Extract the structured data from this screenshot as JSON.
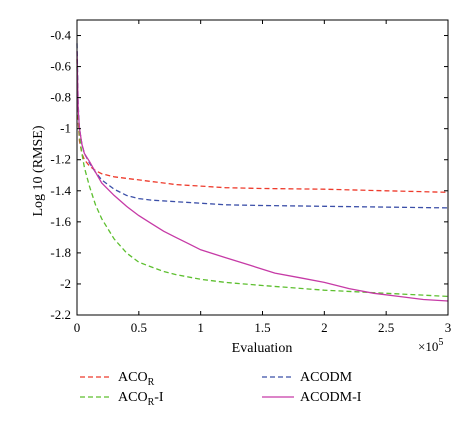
{
  "chart_data": {
    "type": "line",
    "xlabel": "Evaluation",
    "ylabel": "Log 10 (RMSE)",
    "x_multiplier_label": "×10",
    "x_multiplier_exp": "5",
    "xlim": [
      0,
      3
    ],
    "ylim": [
      -2.2,
      -0.3
    ],
    "xticks": [
      0,
      0.5,
      1,
      1.5,
      2,
      2.5,
      3
    ],
    "xtick_labels": [
      "0",
      "0.5",
      "1",
      "1.5",
      "2",
      "2.5",
      "3"
    ],
    "yticks": [
      -0.4,
      -0.6,
      -0.8,
      -1,
      -1.2,
      -1.4,
      -1.6,
      -1.8,
      -2,
      -2.2
    ],
    "ytick_labels": [
      "-0.4",
      "-0.6",
      "-0.8",
      "-1",
      "-1.2",
      "-1.4",
      "-1.6",
      "-1.8",
      "-2",
      "-2.2"
    ],
    "grid": false,
    "legend_placement": "bottom",
    "series": [
      {
        "name": "ACO",
        "name_sub": "R",
        "name_suffix": "",
        "color": "#ee3b2c",
        "dash": "dashed",
        "x": [
          0,
          0.01,
          0.02,
          0.04,
          0.06,
          0.1,
          0.15,
          0.2,
          0.3,
          0.4,
          0.5,
          0.6,
          0.7,
          0.8,
          1.0,
          1.2,
          1.5,
          2.0,
          2.5,
          3.0
        ],
        "y": [
          -0.55,
          -0.95,
          -1.08,
          -1.16,
          -1.2,
          -1.24,
          -1.27,
          -1.29,
          -1.31,
          -1.32,
          -1.33,
          -1.34,
          -1.35,
          -1.36,
          -1.37,
          -1.38,
          -1.385,
          -1.39,
          -1.4,
          -1.41
        ]
      },
      {
        "name": "ACODM",
        "name_sub": "",
        "name_suffix": "",
        "color": "#3b4fa8",
        "dash": "dashed",
        "x": [
          0,
          0.01,
          0.02,
          0.04,
          0.06,
          0.1,
          0.15,
          0.2,
          0.3,
          0.4,
          0.5,
          0.6,
          0.8,
          1.0,
          1.2,
          1.5,
          2.0,
          2.5,
          3.0
        ],
        "y": [
          -0.45,
          -0.85,
          -1.0,
          -1.1,
          -1.16,
          -1.22,
          -1.28,
          -1.33,
          -1.39,
          -1.43,
          -1.45,
          -1.46,
          -1.47,
          -1.48,
          -1.49,
          -1.495,
          -1.5,
          -1.505,
          -1.51
        ]
      },
      {
        "name": "ACO",
        "name_sub": "R",
        "name_suffix": "-I",
        "color": "#5dbf2f",
        "dash": "dashed",
        "x": [
          0,
          0.01,
          0.02,
          0.04,
          0.06,
          0.1,
          0.15,
          0.2,
          0.3,
          0.4,
          0.5,
          0.6,
          0.7,
          0.8,
          1.0,
          1.2,
          1.5,
          2.0,
          2.5,
          3.0
        ],
        "y": [
          -0.6,
          -0.9,
          -1.05,
          -1.16,
          -1.25,
          -1.37,
          -1.49,
          -1.58,
          -1.71,
          -1.8,
          -1.86,
          -1.89,
          -1.92,
          -1.94,
          -1.97,
          -1.99,
          -2.01,
          -2.04,
          -2.06,
          -2.08
        ]
      },
      {
        "name": "ACODM-I",
        "name_sub": "",
        "name_suffix": "",
        "color": "#c63aa6",
        "dash": "solid",
        "x": [
          0,
          0.01,
          0.02,
          0.04,
          0.06,
          0.1,
          0.15,
          0.2,
          0.3,
          0.4,
          0.5,
          0.6,
          0.7,
          0.8,
          0.9,
          1.0,
          1.2,
          1.4,
          1.6,
          1.8,
          2.0,
          2.2,
          2.4,
          2.6,
          2.8,
          3.0
        ],
        "y": [
          -0.5,
          -0.88,
          -1.0,
          -1.1,
          -1.16,
          -1.21,
          -1.28,
          -1.35,
          -1.43,
          -1.5,
          -1.56,
          -1.61,
          -1.66,
          -1.7,
          -1.74,
          -1.78,
          -1.83,
          -1.88,
          -1.93,
          -1.96,
          -1.99,
          -2.03,
          -2.06,
          -2.08,
          -2.1,
          -2.11
        ]
      }
    ]
  }
}
